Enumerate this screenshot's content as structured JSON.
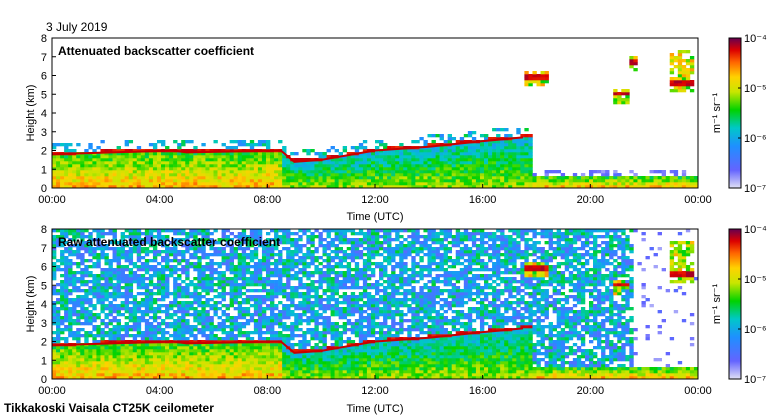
{
  "header": {
    "date": "3 July 2019"
  },
  "footer": {
    "text": "Tikkakoski Vaisala CT25K ceilometer"
  },
  "chart_data": [
    {
      "type": "heatmap",
      "title": "Attenuated backscatter coefficient",
      "xlabel": "Time (UTC)",
      "ylabel": "Height (km)",
      "x_tick_labels": [
        "00:00",
        "04:00",
        "08:00",
        "12:00",
        "16:00",
        "20:00",
        "00:00"
      ],
      "y_tick_labels": [
        "0",
        "1",
        "2",
        "3",
        "4",
        "5",
        "6",
        "7",
        "8"
      ],
      "xlim_hours": [
        0,
        24
      ],
      "ylim_km": [
        0,
        8
      ],
      "colorbar": {
        "scale": "log",
        "range": [
          1e-07,
          0.0001
        ],
        "tick_labels": [
          "10⁻⁷",
          "10⁻⁶",
          "10⁻⁵",
          "10⁻⁴"
        ],
        "unit": "m⁻¹ sr⁻¹"
      },
      "features": {
        "boundary_layer_top_km": [
          [
            0,
            1.8
          ],
          [
            4.5,
            2.0
          ],
          [
            5,
            1.9
          ],
          [
            8.5,
            2.0
          ],
          [
            9,
            1.4
          ],
          [
            10,
            1.5
          ],
          [
            12,
            2.0
          ],
          [
            14,
            2.2
          ],
          [
            16,
            2.5
          ],
          [
            17.5,
            2.7
          ]
        ],
        "cloud_layers": [
          {
            "t_start_h": 17.5,
            "t_end_h": 18.5,
            "base_km": 5.8,
            "top_km": 6.2
          },
          {
            "t_start_h": 20.8,
            "t_end_h": 21.5,
            "base_km": 4.9,
            "top_km": 5.3
          },
          {
            "t_start_h": 21.5,
            "t_end_h": 21.8,
            "base_km": 6.6,
            "top_km": 7.0
          },
          {
            "t_start_h": 23.0,
            "t_end_h": 23.8,
            "base_km": 5.5,
            "top_km": 7.4
          }
        ]
      }
    },
    {
      "type": "heatmap",
      "title": "Raw attenuated backscatter coefficient",
      "xlabel": "Time (UTC)",
      "ylabel": "Height (km)",
      "x_tick_labels": [
        "00:00",
        "04:00",
        "08:00",
        "12:00",
        "16:00",
        "20:00",
        "00:00"
      ],
      "y_tick_labels": [
        "0",
        "1",
        "2",
        "3",
        "4",
        "5",
        "6",
        "7",
        "8"
      ],
      "xlim_hours": [
        0,
        24
      ],
      "ylim_km": [
        0,
        8
      ],
      "colorbar": {
        "scale": "log",
        "range": [
          1e-07,
          0.0001
        ],
        "tick_labels": [
          "10⁻⁷",
          "10⁻⁶",
          "10⁻⁵",
          "10⁻⁴"
        ],
        "unit": "m⁻¹ sr⁻¹"
      },
      "features": {
        "boundary_layer_top_km": [
          [
            0,
            1.8
          ],
          [
            4.5,
            2.0
          ],
          [
            5,
            1.9
          ],
          [
            8.5,
            2.0
          ],
          [
            9,
            1.4
          ],
          [
            10,
            1.5
          ],
          [
            12,
            2.0
          ],
          [
            14,
            2.2
          ],
          [
            16,
            2.5
          ],
          [
            17.5,
            2.7
          ]
        ],
        "cloud_layers": [
          {
            "t_start_h": 17.5,
            "t_end_h": 18.5,
            "base_km": 5.8,
            "top_km": 6.2
          },
          {
            "t_start_h": 20.8,
            "t_end_h": 21.5,
            "base_km": 4.9,
            "top_km": 5.3
          },
          {
            "t_start_h": 23.0,
            "t_end_h": 23.8,
            "base_km": 5.5,
            "top_km": 7.4
          }
        ]
      }
    }
  ]
}
